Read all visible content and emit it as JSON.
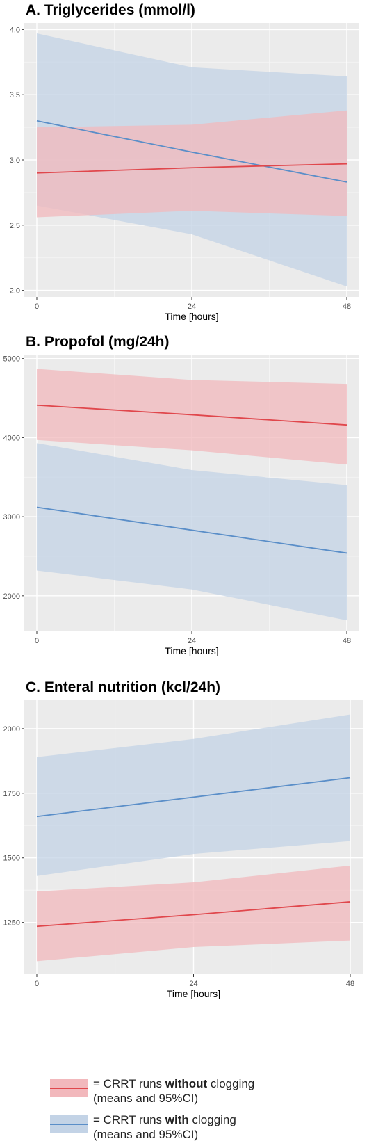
{
  "colors": {
    "panel_bg": "#EBEBEB",
    "grid_major": "#FFFFFF",
    "without_line": "#E0474C",
    "without_band": "#F2B8BC",
    "with_line": "#5A8EC8",
    "with_band": "#C3D3E6"
  },
  "chart_data": [
    {
      "type": "line",
      "title": "A. Triglycerides (mmol/l)",
      "xlabel": "Time [hours]",
      "ylabel": "",
      "x": [
        0,
        24,
        48
      ],
      "xlim": [
        0,
        48
      ],
      "ylim": [
        1.95,
        4.05
      ],
      "yticks": [
        2.0,
        2.5,
        3.0,
        3.5,
        4.0
      ],
      "ytick_labels": [
        "2.0",
        "2.5",
        "3.0",
        "3.5",
        "4.0"
      ],
      "xtick_labels": [
        "0",
        "24",
        "48"
      ],
      "grid": true,
      "series": [
        {
          "group": "with",
          "values": [
            3.3,
            3.06,
            2.83
          ],
          "lower": [
            2.65,
            2.43,
            2.03
          ],
          "upper": [
            3.97,
            3.71,
            3.64
          ]
        },
        {
          "group": "without",
          "values": [
            2.9,
            2.94,
            2.97
          ],
          "lower": [
            2.56,
            2.61,
            2.57
          ],
          "upper": [
            3.25,
            3.27,
            3.38
          ]
        }
      ]
    },
    {
      "type": "line",
      "title": "B. Propofol (mg/24h)",
      "xlabel": "Time [hours]",
      "ylabel": "",
      "x": [
        0,
        24,
        48
      ],
      "xlim": [
        0,
        48
      ],
      "ylim": [
        1550,
        5050
      ],
      "yticks": [
        2000,
        3000,
        4000,
        5000
      ],
      "ytick_labels": [
        "2000",
        "3000",
        "4000",
        "5000"
      ],
      "xtick_labels": [
        "0",
        "24",
        "48"
      ],
      "grid": true,
      "series": [
        {
          "group": "with",
          "values": [
            3120,
            2830,
            2540
          ],
          "lower": [
            2320,
            2080,
            1690
          ],
          "upper": [
            3930,
            3590,
            3400
          ]
        },
        {
          "group": "without",
          "values": [
            4410,
            4290,
            4160
          ],
          "lower": [
            3970,
            3840,
            3660
          ],
          "upper": [
            4870,
            4730,
            4680
          ]
        }
      ]
    },
    {
      "type": "line",
      "title": "C. Enteral nutrition (kcl/24h)",
      "xlabel": "Time [hours]",
      "ylabel": "",
      "x": [
        0,
        24,
        48
      ],
      "xlim": [
        0,
        48
      ],
      "ylim": [
        1050,
        2110
      ],
      "yticks": [
        1250,
        1500,
        1750,
        2000
      ],
      "ytick_labels": [
        "1250",
        "1500",
        "1750",
        "2000"
      ],
      "xtick_labels": [
        "0",
        "24",
        "48"
      ],
      "grid": true,
      "series": [
        {
          "group": "with",
          "values": [
            1660,
            1735,
            1810
          ],
          "lower": [
            1430,
            1515,
            1565
          ],
          "upper": [
            1890,
            1960,
            2055
          ]
        },
        {
          "group": "without",
          "values": [
            1235,
            1280,
            1330
          ],
          "lower": [
            1100,
            1155,
            1180
          ],
          "upper": [
            1370,
            1405,
            1470
          ]
        }
      ]
    }
  ],
  "legend": {
    "without": {
      "prefix": "= CRRT runs ",
      "bold": "without",
      "suffix": " clogging",
      "line2": "(means and 95%CI)"
    },
    "with": {
      "prefix": "= CRRT runs ",
      "bold": "with",
      "suffix": "  clogging",
      "line2": "(means and 95%CI)"
    }
  }
}
